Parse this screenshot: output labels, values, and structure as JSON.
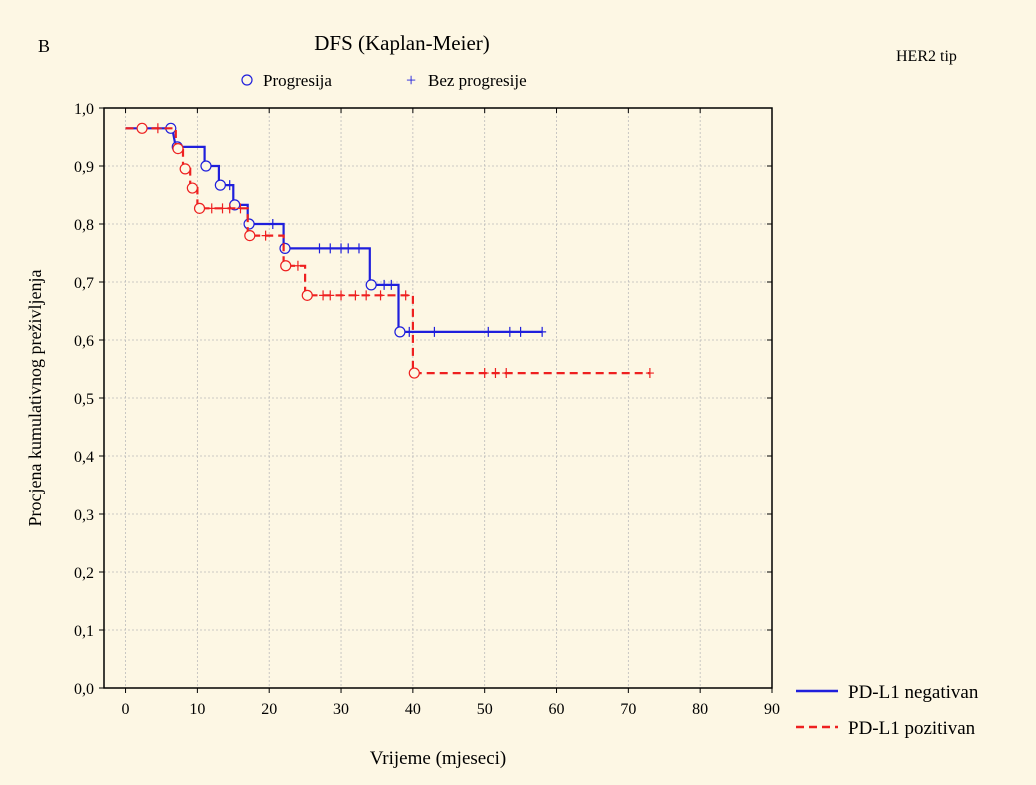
{
  "panel_label": "B",
  "corner_label": "HER2 tip",
  "chart_data": {
    "type": "line",
    "subtype": "kaplan-meier",
    "title": "DFS (Kaplan-Meier)",
    "xlabel": "Vrijeme (mjeseci)",
    "ylabel": "Procjena kumulativnog preživljenja",
    "xlim": [
      -3,
      90
    ],
    "ylim": [
      0,
      1.0
    ],
    "xticks": [
      0,
      10,
      20,
      30,
      40,
      50,
      60,
      70,
      80,
      90
    ],
    "yticks": [
      0.0,
      0.1,
      0.2,
      0.3,
      0.4,
      0.5,
      0.6,
      0.7,
      0.8,
      0.9,
      1.0
    ],
    "ytick_labels": [
      "0,0",
      "0,1",
      "0,2",
      "0,3",
      "0,4",
      "0,5",
      "0,6",
      "0,7",
      "0,8",
      "0,9",
      "1,0"
    ],
    "grid": true,
    "marker_legend": [
      {
        "symbol": "○",
        "label": "Progresija"
      },
      {
        "symbol": "+",
        "label": "Bez progresije"
      }
    ],
    "series_legend_position": "bottom-right",
    "series": [
      {
        "name": "PD-L1 negativan",
        "color": "#1f1fdc",
        "dash": "solid",
        "steps": [
          [
            0,
            0.965
          ],
          [
            6.5,
            0.965
          ],
          [
            7,
            0.933
          ],
          [
            11,
            0.933
          ],
          [
            11,
            0.9
          ],
          [
            13,
            0.9
          ],
          [
            13,
            0.867
          ],
          [
            15,
            0.867
          ],
          [
            15,
            0.833
          ],
          [
            17,
            0.833
          ],
          [
            17,
            0.8
          ],
          [
            22,
            0.8
          ],
          [
            22,
            0.758
          ],
          [
            34,
            0.758
          ],
          [
            34,
            0.695
          ],
          [
            38,
            0.695
          ],
          [
            38,
            0.614
          ],
          [
            58,
            0.614
          ]
        ],
        "events": [
          [
            6.3,
            0.965
          ],
          [
            7.2,
            0.933
          ],
          [
            11.2,
            0.9
          ],
          [
            13.2,
            0.867
          ],
          [
            15.2,
            0.833
          ],
          [
            17.2,
            0.8
          ],
          [
            22.2,
            0.758
          ],
          [
            34.2,
            0.695
          ],
          [
            38.2,
            0.614
          ]
        ],
        "censored": [
          [
            14.5,
            0.867
          ],
          [
            20.5,
            0.8
          ],
          [
            27,
            0.758
          ],
          [
            28.5,
            0.758
          ],
          [
            30,
            0.758
          ],
          [
            31,
            0.758
          ],
          [
            32.5,
            0.758
          ],
          [
            36,
            0.695
          ],
          [
            37,
            0.695
          ],
          [
            39.5,
            0.614
          ],
          [
            43,
            0.614
          ],
          [
            50.5,
            0.614
          ],
          [
            53.5,
            0.614
          ],
          [
            55,
            0.614
          ],
          [
            58,
            0.614
          ]
        ]
      },
      {
        "name": "PD-L1 pozitivan",
        "color": "#ee2020",
        "dash": "dashed",
        "steps": [
          [
            0,
            0.965
          ],
          [
            7,
            0.965
          ],
          [
            7,
            0.93
          ],
          [
            8,
            0.93
          ],
          [
            8,
            0.895
          ],
          [
            9,
            0.895
          ],
          [
            9,
            0.862
          ],
          [
            10,
            0.862
          ],
          [
            10,
            0.827
          ],
          [
            17,
            0.827
          ],
          [
            17,
            0.78
          ],
          [
            22,
            0.78
          ],
          [
            22,
            0.728
          ],
          [
            25,
            0.728
          ],
          [
            25,
            0.677
          ],
          [
            40,
            0.677
          ],
          [
            40,
            0.543
          ],
          [
            73,
            0.543
          ]
        ],
        "events": [
          [
            2.3,
            0.965
          ],
          [
            7.3,
            0.93
          ],
          [
            8.3,
            0.895
          ],
          [
            9.3,
            0.862
          ],
          [
            10.3,
            0.827
          ],
          [
            17.3,
            0.78
          ],
          [
            22.3,
            0.728
          ],
          [
            25.3,
            0.677
          ],
          [
            40.2,
            0.543
          ]
        ],
        "censored": [
          [
            4.5,
            0.965
          ],
          [
            12,
            0.827
          ],
          [
            13.5,
            0.827
          ],
          [
            14.5,
            0.827
          ],
          [
            16,
            0.827
          ],
          [
            19.5,
            0.78
          ],
          [
            24,
            0.728
          ],
          [
            27.5,
            0.677
          ],
          [
            28.5,
            0.677
          ],
          [
            30,
            0.677
          ],
          [
            32,
            0.677
          ],
          [
            33.5,
            0.677
          ],
          [
            35.5,
            0.677
          ],
          [
            39,
            0.677
          ],
          [
            50,
            0.543
          ],
          [
            51.5,
            0.543
          ],
          [
            53,
            0.543
          ],
          [
            73,
            0.543
          ]
        ]
      }
    ]
  }
}
